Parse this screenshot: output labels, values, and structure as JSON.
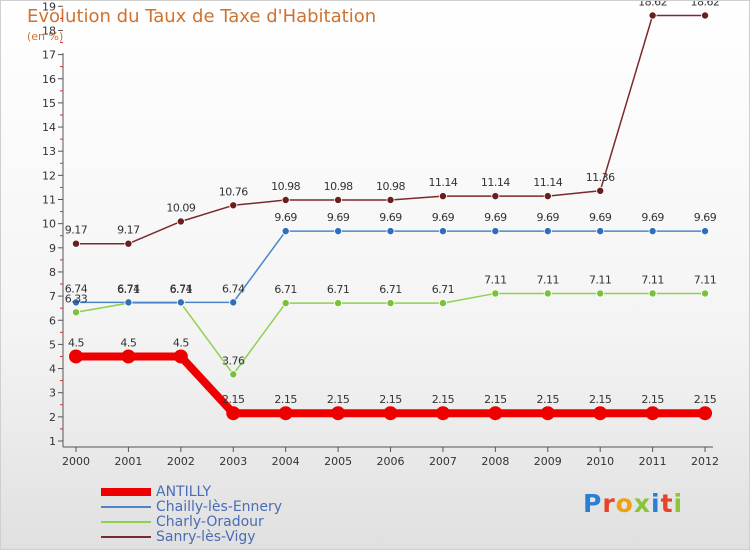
{
  "chart_data": {
    "type": "line",
    "title": "Evolution du Taux de Taxe d'Habitation",
    "subtitle": "(en %)",
    "x": [
      "2000",
      "2001",
      "2002",
      "2003",
      "2004",
      "2005",
      "2006",
      "2007",
      "2008",
      "2009",
      "2010",
      "2011",
      "2012"
    ],
    "ylim": [
      1,
      19
    ],
    "yticks": [
      "1",
      "2",
      "3",
      "4",
      "5",
      "6",
      "7",
      "8",
      "9",
      "10",
      "11",
      "12",
      "13",
      "14",
      "15",
      "16",
      "17",
      "18",
      "19"
    ],
    "grid": false,
    "legend_position": "bottom-left",
    "series": [
      {
        "name": "ANTILLY",
        "color": "#ee0000",
        "values": [
          4.5,
          4.5,
          4.5,
          2.15,
          2.15,
          2.15,
          2.15,
          2.15,
          2.15,
          2.15,
          2.15,
          2.15,
          2.15
        ],
        "labels": [
          "4.5",
          "4.5",
          "4.5",
          "2.15",
          "2.15",
          "2.15",
          "2.15",
          "2.15",
          "2.15",
          "2.15",
          "2.15",
          "2.15",
          "2.15"
        ]
      },
      {
        "name": "Chailly-lès-Ennery",
        "color": "#4a86c8",
        "values": [
          6.74,
          6.74,
          6.74,
          6.74,
          9.69,
          9.69,
          9.69,
          9.69,
          9.69,
          9.69,
          9.69,
          9.69,
          9.69
        ],
        "labels": [
          "6.74",
          "6.74",
          "6.74",
          "6.74",
          "9.69",
          "9.69",
          "9.69",
          "9.69",
          "9.69",
          "9.69",
          "9.69",
          "9.69",
          "9.69"
        ]
      },
      {
        "name": "Charly-Oradour",
        "color": "#8fd14f",
        "values": [
          6.33,
          6.71,
          6.71,
          3.76,
          6.71,
          6.71,
          6.71,
          6.71,
          7.11,
          7.11,
          7.11,
          7.11,
          7.11
        ],
        "labels": [
          "6.33",
          "6.71",
          "6.71",
          "3.76",
          "6.71",
          "6.71",
          "6.71",
          "6.71",
          "7.11",
          "7.11",
          "7.11",
          "7.11",
          "7.11"
        ]
      },
      {
        "name": "Sanry-lès-Vigy",
        "color": "#7a2a2a",
        "values": [
          9.17,
          9.17,
          10.09,
          10.76,
          10.98,
          10.98,
          10.98,
          11.14,
          11.14,
          11.14,
          11.36,
          18.62,
          18.62
        ],
        "labels": [
          "9.17",
          "9.17",
          "10.09",
          "10.76",
          "10.98",
          "10.98",
          "10.98",
          "11.14",
          "11.14",
          "11.14",
          "11.36",
          "18.62",
          "18.62"
        ]
      }
    ]
  },
  "logo": {
    "text": "Proxiti"
  }
}
